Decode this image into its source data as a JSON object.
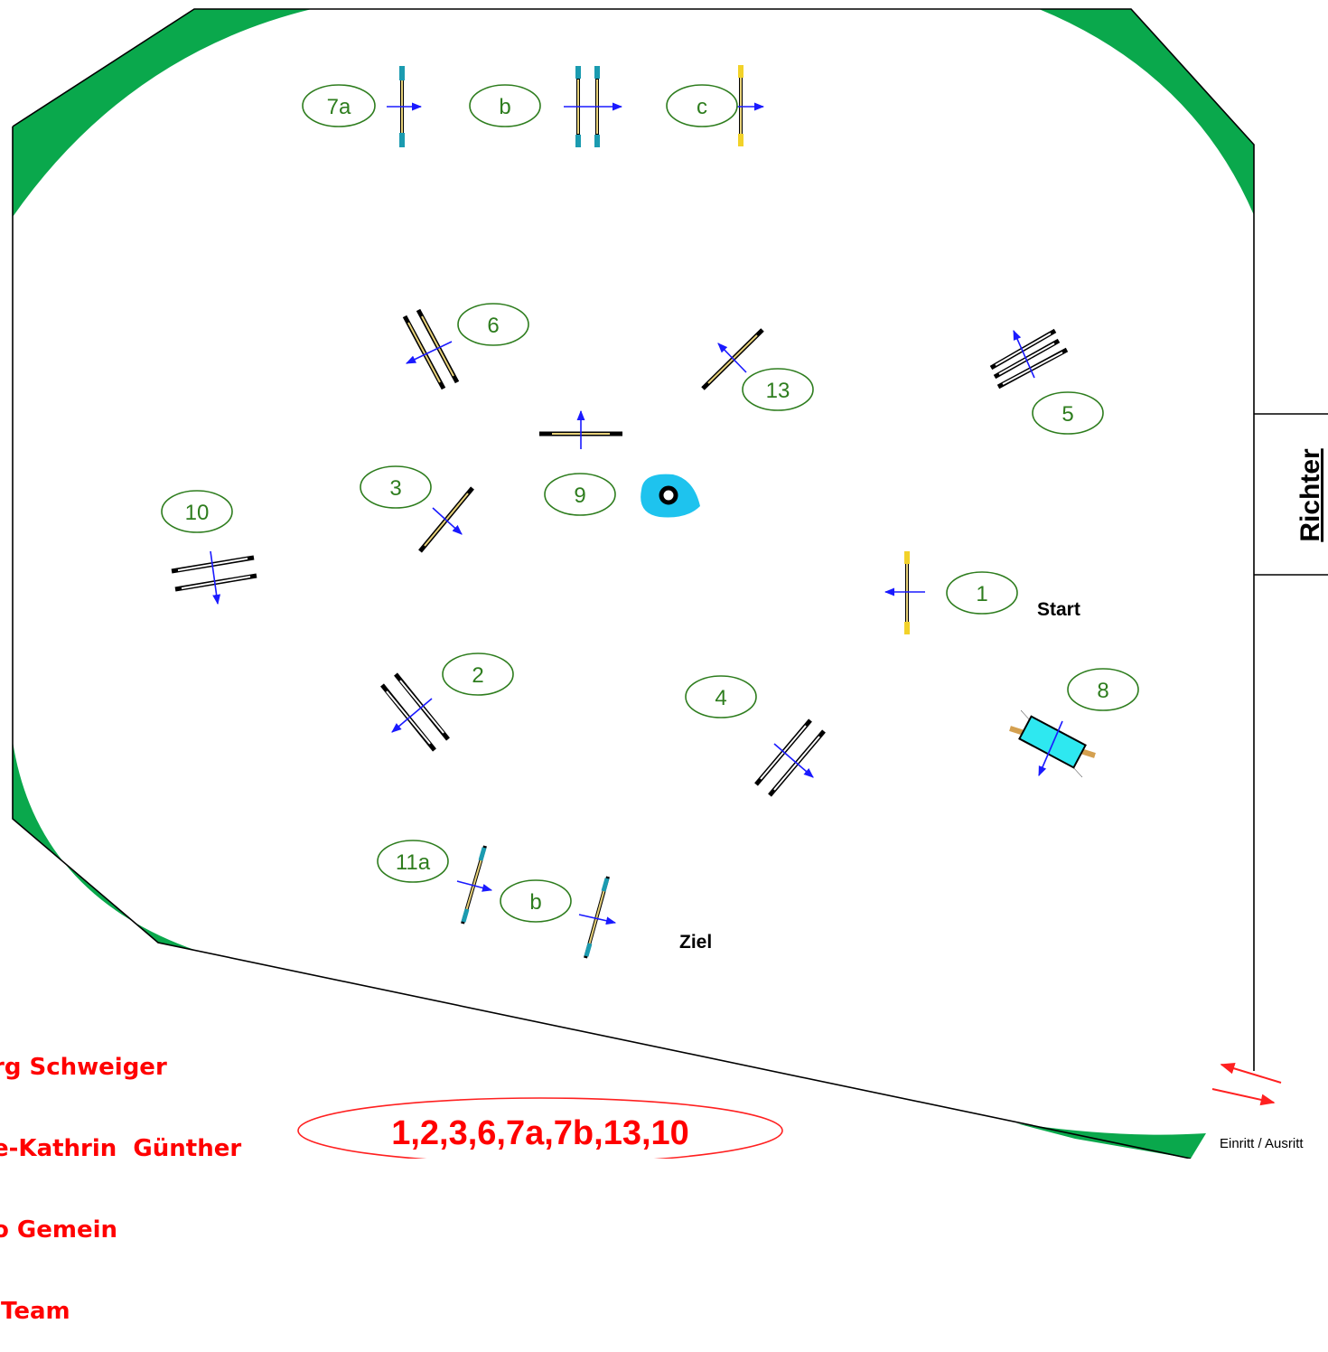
{
  "labels": {
    "judge": "Richter",
    "start": "Start",
    "finish": "Ziel",
    "entry_exit": "Einritt / Ausritt",
    "sequence": "1,2,3,6,7a,7b,13,10"
  },
  "obstacle_labels": {
    "o7a": "7a",
    "o7b": "b",
    "o7c": "c",
    "o6": "6",
    "o13": "13",
    "o5": "5",
    "o3": "3",
    "o9": "9",
    "o10": "10",
    "o1": "1",
    "o2": "2",
    "o4": "4",
    "o8": "8",
    "o11a": "11a",
    "o11b": "b"
  },
  "credits": [
    "rg Schweiger",
    "e-Kathrin  Günther",
    "o Gemein",
    " Team"
  ],
  "colors": {
    "corner_green": "#0aa84c",
    "label_green": "#2e7d1e",
    "arrow_blue": "#1a1aff",
    "water_blue": "#1ec3ee",
    "credits_red": "#ff0000"
  }
}
